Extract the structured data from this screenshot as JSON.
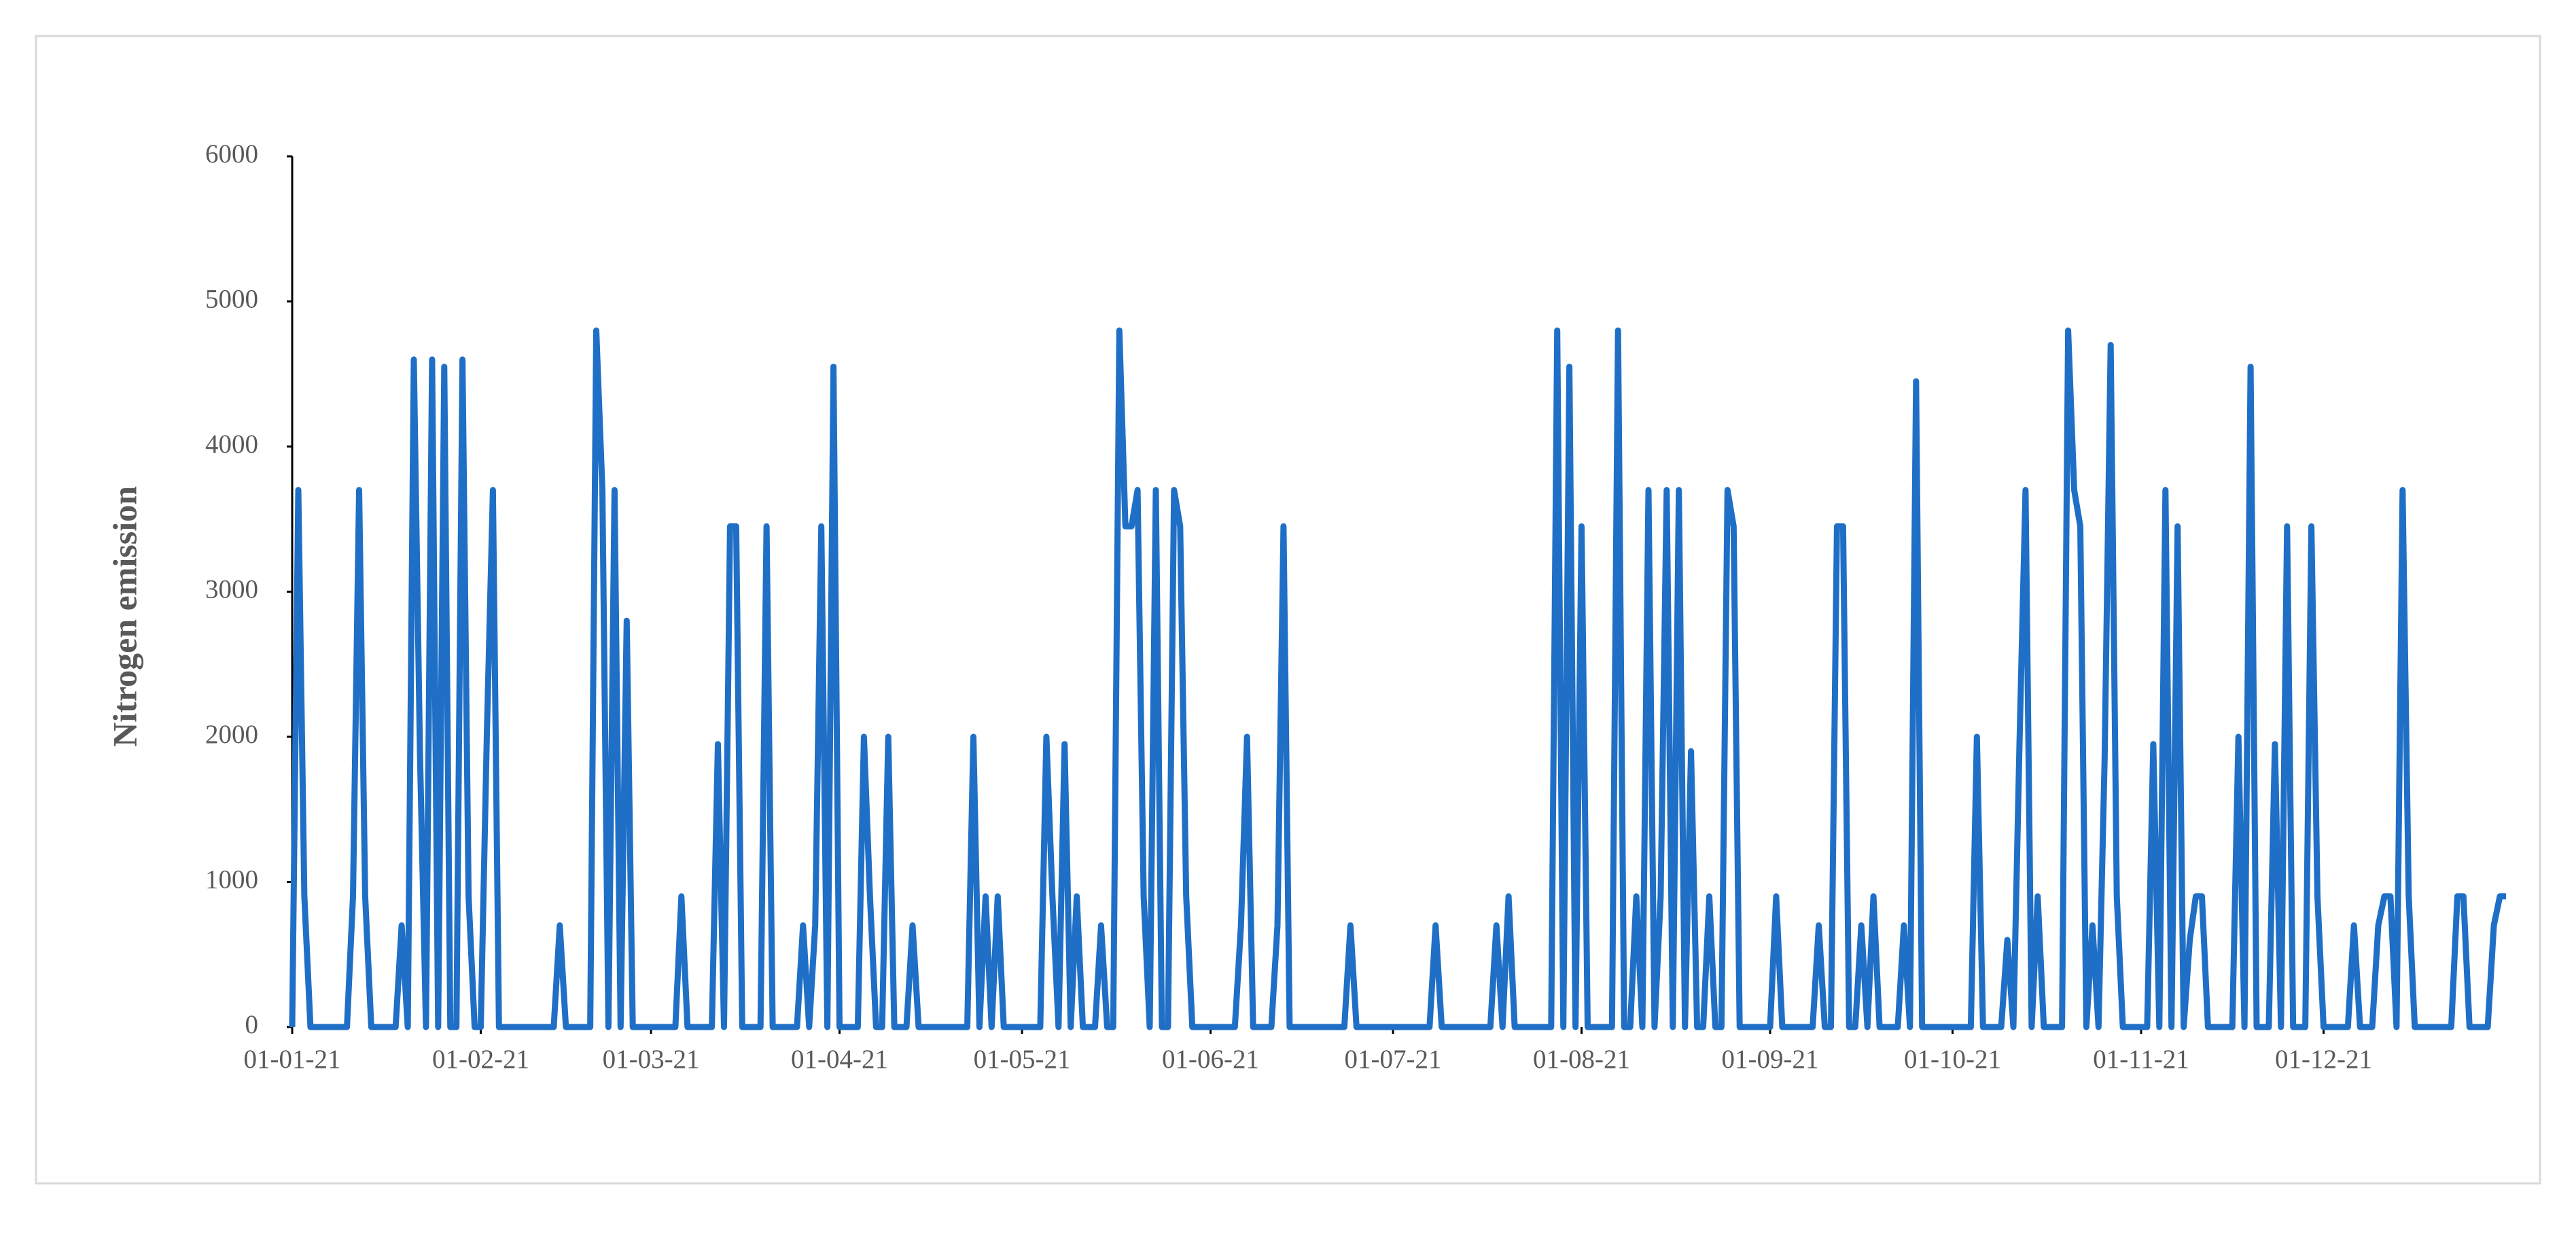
{
  "chart_data": {
    "type": "line",
    "y_label": "Nitrogen emission",
    "color": "#1f6fc6",
    "x": [
      "01-01-21",
      "02-01-21",
      "03-01-21",
      "04-01-21",
      "10-01-21",
      "11-01-21",
      "12-01-21",
      "13-01-21",
      "14-01-21",
      "18-01-21",
      "19-01-21",
      "20-01-21",
      "21-01-21",
      "22-01-21",
      "23-01-21",
      "24-01-21",
      "25-01-21",
      "26-01-21",
      "27-01-21",
      "28-01-21",
      "29-01-21",
      "30-01-21",
      "31-01-21",
      "01-02-21",
      "02-02-21",
      "03-02-21",
      "04-02-21",
      "13-02-21",
      "14-02-21",
      "15-02-21",
      "19-02-21",
      "20-02-21",
      "21-02-21",
      "22-02-21",
      "23-02-21",
      "24-02-21",
      "25-02-21",
      "26-02-21",
      "05-03-21",
      "06-03-21",
      "07-03-21",
      "11-03-21",
      "12-03-21",
      "13-03-21",
      "14-03-21",
      "15-03-21",
      "16-03-21",
      "19-03-21",
      "20-03-21",
      "21-03-21",
      "25-03-21",
      "26-03-21",
      "27-03-21",
      "28-03-21",
      "29-03-21",
      "30-03-21",
      "31-03-21",
      "01-04-21",
      "04-04-21",
      "05-04-21",
      "06-04-21",
      "07-04-21",
      "08-04-21",
      "09-04-21",
      "10-04-21",
      "12-04-21",
      "13-04-21",
      "14-04-21",
      "22-04-21",
      "23-04-21",
      "24-04-21",
      "25-04-21",
      "26-04-21",
      "27-04-21",
      "28-04-21",
      "04-05-21",
      "05-05-21",
      "06-05-21",
      "07-05-21",
      "08-05-21",
      "09-05-21",
      "10-05-21",
      "11-05-21",
      "13-05-21",
      "14-05-21",
      "15-05-21",
      "16-05-21",
      "17-05-21",
      "18-05-21",
      "19-05-21",
      "20-05-21",
      "21-05-21",
      "22-05-21",
      "23-05-21",
      "24-05-21",
      "25-05-21",
      "26-05-21",
      "27-05-21",
      "28-05-21",
      "29-05-21",
      "05-06-21",
      "06-06-21",
      "07-06-21",
      "08-06-21",
      "11-06-21",
      "12-06-21",
      "13-06-21",
      "14-06-21",
      "23-06-21",
      "24-06-21",
      "25-06-21",
      "07-07-21",
      "08-07-21",
      "09-07-21",
      "17-07-21",
      "18-07-21",
      "19-07-21",
      "20-07-21",
      "21-07-21",
      "27-07-21",
      "28-07-21",
      "29-07-21",
      "30-07-21",
      "31-07-21",
      "01-08-21",
      "02-08-21",
      "06-08-21",
      "07-08-21",
      "08-08-21",
      "09-08-21",
      "10-08-21",
      "11-08-21",
      "12-08-21",
      "13-08-21",
      "14-08-21",
      "15-08-21",
      "16-08-21",
      "17-08-21",
      "18-08-21",
      "19-08-21",
      "20-08-21",
      "21-08-21",
      "22-08-21",
      "23-08-21",
      "24-08-21",
      "25-08-21",
      "26-08-21",
      "27-08-21",
      "01-09-21",
      "02-09-21",
      "03-09-21",
      "08-09-21",
      "09-09-21",
      "10-09-21",
      "11-09-21",
      "12-09-21",
      "13-09-21",
      "14-09-21",
      "15-09-21",
      "16-09-21",
      "17-09-21",
      "18-09-21",
      "19-09-21",
      "22-09-21",
      "23-09-21",
      "24-09-21",
      "25-09-21",
      "26-09-21",
      "04-10-21",
      "05-10-21",
      "06-10-21",
      "09-10-21",
      "10-10-21",
      "11-10-21",
      "12-10-21",
      "13-10-21",
      "14-10-21",
      "15-10-21",
      "16-10-21",
      "19-10-21",
      "20-10-21",
      "21-10-21",
      "22-10-21",
      "23-10-21",
      "24-10-21",
      "25-10-21",
      "26-10-21",
      "27-10-21",
      "28-10-21",
      "29-10-21",
      "02-11-21",
      "03-11-21",
      "04-11-21",
      "05-11-21",
      "06-11-21",
      "07-11-21",
      "08-11-21",
      "09-11-21",
      "10-11-21",
      "11-11-21",
      "12-11-21",
      "16-11-21",
      "17-11-21",
      "18-11-21",
      "19-11-21",
      "20-11-21",
      "22-11-21",
      "23-11-21",
      "24-11-21",
      "25-11-21",
      "26-11-21",
      "28-11-21",
      "29-11-21",
      "30-11-21",
      "01-12-21",
      "05-12-21",
      "06-12-21",
      "07-12-21",
      "09-12-21",
      "10-12-21",
      "11-12-21",
      "12-12-21",
      "13-12-21",
      "14-12-21",
      "15-12-21",
      "16-12-21",
      "22-12-21",
      "23-12-21",
      "24-12-21",
      "25-12-21",
      "28-12-21",
      "29-12-21",
      "30-12-21",
      "31-12-21"
    ],
    "values": [
      0,
      3700,
      900,
      0,
      0,
      900,
      3700,
      900,
      0,
      0,
      700,
      0,
      4600,
      1900,
      0,
      4600,
      0,
      4550,
      0,
      0,
      4600,
      900,
      0,
      0,
      2000,
      3700,
      0,
      0,
      700,
      0,
      0,
      4800,
      3700,
      0,
      3700,
      0,
      2800,
      0,
      0,
      900,
      0,
      0,
      1950,
      0,
      3450,
      3450,
      0,
      0,
      3450,
      0,
      0,
      700,
      0,
      700,
      3450,
      0,
      4550,
      0,
      0,
      2000,
      900,
      0,
      0,
      2000,
      0,
      0,
      700,
      0,
      0,
      2000,
      0,
      900,
      0,
      900,
      0,
      0,
      2000,
      900,
      0,
      1950,
      0,
      900,
      0,
      0,
      700,
      0,
      0,
      4800,
      3450,
      3450,
      3700,
      900,
      0,
      3700,
      0,
      0,
      3700,
      3450,
      900,
      0,
      0,
      700,
      2000,
      0,
      0,
      700,
      3450,
      0,
      0,
      700,
      0,
      0,
      700,
      0,
      0,
      700,
      0,
      900,
      0,
      0,
      4800,
      0,
      4550,
      0,
      3450,
      0,
      0,
      4800,
      0,
      0,
      900,
      0,
      3700,
      0,
      900,
      3700,
      0,
      3700,
      0,
      1900,
      0,
      0,
      900,
      0,
      0,
      3700,
      3450,
      0,
      0,
      900,
      0,
      0,
      700,
      0,
      0,
      3450,
      3450,
      0,
      0,
      700,
      0,
      900,
      0,
      0,
      700,
      0,
      4450,
      0,
      0,
      2000,
      0,
      0,
      600,
      0,
      1950,
      3700,
      0,
      900,
      0,
      0,
      4800,
      3700,
      3450,
      0,
      700,
      0,
      1850,
      4700,
      900,
      0,
      0,
      1950,
      0,
      3700,
      0,
      3450,
      0,
      600,
      900,
      900,
      0,
      0,
      2000,
      0,
      4550,
      0,
      0,
      1950,
      0,
      3450,
      0,
      0,
      3450,
      900,
      0,
      0,
      700,
      0,
      0,
      700,
      900,
      900,
      0,
      3700,
      900,
      0,
      0,
      900,
      900,
      0,
      0,
      700,
      900,
      900
    ],
    "xlim": [
      "01-01-21",
      "31-12-21"
    ],
    "xticks": [
      "01-01-21",
      "01-02-21",
      "01-03-21",
      "01-04-21",
      "01-05-21",
      "01-06-21",
      "01-07-21",
      "01-08-21",
      "01-09-21",
      "01-10-21",
      "01-11-21",
      "01-12-21"
    ],
    "ylim": [
      0,
      6000
    ],
    "yticks": [
      0,
      1000,
      2000,
      3000,
      4000,
      5000,
      6000
    ]
  }
}
